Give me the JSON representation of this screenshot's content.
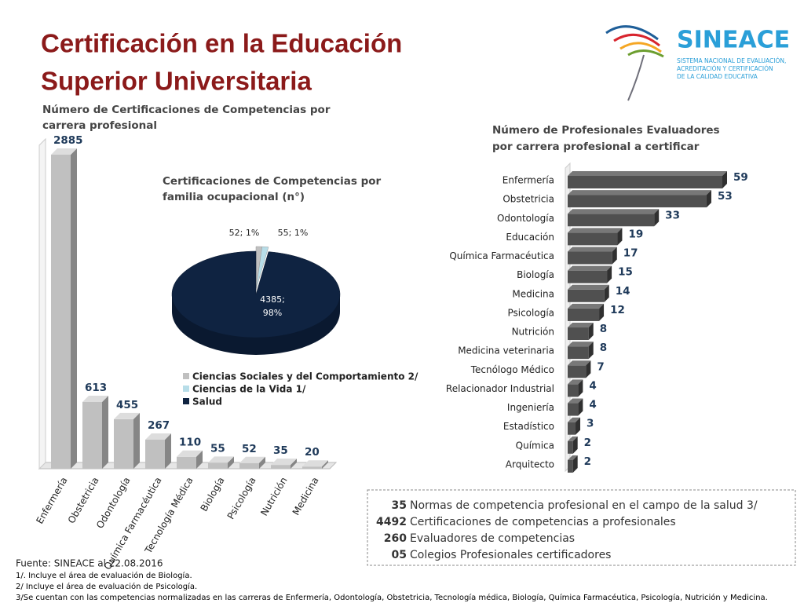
{
  "header": {
    "title": [
      "Certificación en la Educación",
      "Superior Universitaria"
    ]
  },
  "logo": {
    "name": "SINEACE",
    "subtitle": [
      "SISTEMA NACIONAL DE EVALUACIÓN,",
      "ACREDITACIÓN Y CERTIFICACIÓN",
      "DE LA CALIDAD EDUCATIVA"
    ]
  },
  "chart_data": [
    {
      "type": "bar3d",
      "title": [
        "Número de Certificaciones de Competencias por",
        "carrera profesional"
      ],
      "categories": [
        "Enfermería",
        "Obstetricia",
        "Odontología",
        "Química Farmacéutica",
        "Tecnología Médica",
        "Biología",
        "Psicología",
        "Nutrición",
        "Medicina"
      ],
      "values": [
        2885,
        613,
        455,
        267,
        110,
        55,
        52,
        35,
        20
      ],
      "color": "#c0c0c0"
    },
    {
      "type": "pie3d",
      "title": [
        "Certificaciones de Competencias por",
        "familia ocupacional  (n°)"
      ],
      "categories": [
        "Ciencias Sociales y del Comportamiento 2/",
        "Ciencias de la Vida 1/",
        "Salud"
      ],
      "values": [
        52,
        55,
        4385
      ],
      "value_labels": [
        "52; 1%",
        "55; 1%",
        "4385; 98%"
      ],
      "colors": [
        "#c0c0c0",
        "#b7dde8",
        "#0f2341"
      ]
    },
    {
      "type": "hbar3d",
      "title": [
        "Número de Profesionales Evaluadores",
        "por carrera profesional a certificar"
      ],
      "categories": [
        "Enfermería",
        "Obstetricia",
        "Odontología",
        "Educación",
        "Química Farmacéutica",
        "Biología",
        "Medicina",
        "Psicología",
        "Nutrición",
        "Medicina veterinaria",
        "Tecnólogo Médico",
        "Relacionador Industrial",
        "Ingeniería",
        "Estadístico",
        "Química",
        "Arquitecto"
      ],
      "values": [
        59,
        53,
        33,
        19,
        17,
        15,
        14,
        12,
        8,
        8,
        7,
        4,
        4,
        3,
        2,
        2
      ],
      "color": "#505050"
    }
  ],
  "summary": [
    {
      "number": "35",
      "text": "Normas de competencia profesional en el campo de la salud 3/"
    },
    {
      "number": "4492",
      "text": "Certificaciones de competencias a profesionales"
    },
    {
      "number": "260",
      "text": "Evaluadores de competencias"
    },
    {
      "number": "05",
      "text": "Colegios Profesionales certificadores"
    }
  ],
  "footer": {
    "source": "Fuente: SINEACE al  22.08.2016",
    "notes": [
      "1/. Incluye  el área de evaluación de Biología.",
      "2/ Incluye  el área  de evaluación de Psicología.",
      "3/Se cuentan con las competencias normalizadas en las carreras de Enfermería, Odontología, Obstetricia, Tecnología médica, Biología, Química Farmacéutica, Psicología, Nutrición y Medicina."
    ]
  }
}
